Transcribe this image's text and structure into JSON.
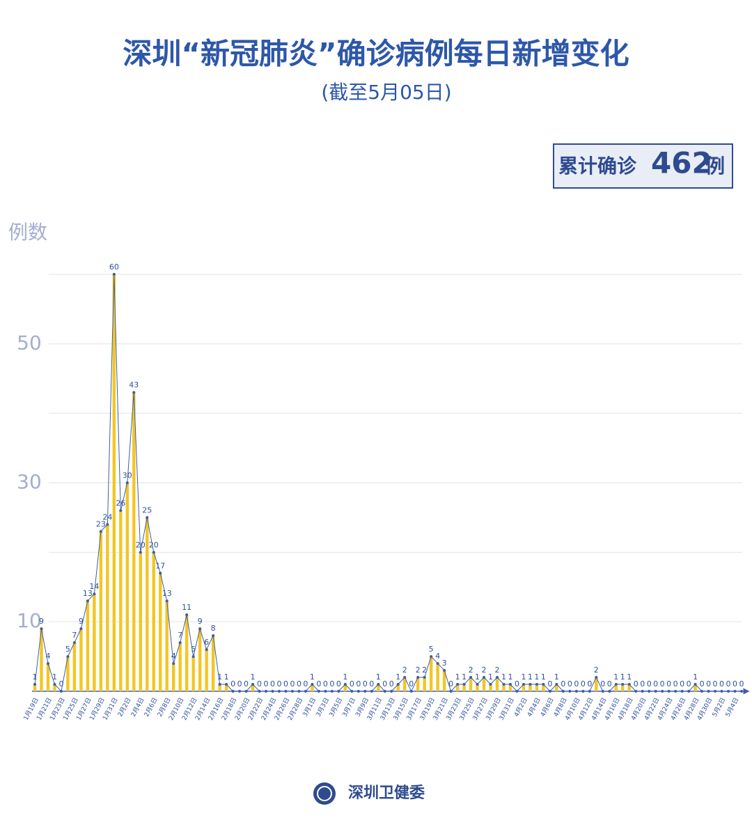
{
  "chart_data": {
    "type": "bar-line",
    "title": "深圳“新冠肺炎”确诊病例每日新增变化",
    "subtitle": "(截至5月05日)",
    "y_label": "例数",
    "categories": [
      "1月19日",
      null,
      "1月21日",
      null,
      "1月23日",
      null,
      "1月25日",
      null,
      "1月27日",
      null,
      "1月29日",
      null,
      "1月31日",
      null,
      "2月2日",
      null,
      "2月4日",
      null,
      "2月6日",
      null,
      "2月8日",
      null,
      "2月10日",
      null,
      "2月12日",
      null,
      "2月14日",
      null,
      "2月16日",
      null,
      "2月18日",
      null,
      "2月20日",
      null,
      "2月22日",
      null,
      "2月24日",
      null,
      "2月26日",
      null,
      "2月28日",
      null,
      "3月1日",
      null,
      "3月3日",
      null,
      "3月5日",
      null,
      "3月7日",
      null,
      "3月9日",
      null,
      "3月11日",
      null,
      "3月13日",
      null,
      "3月15日",
      null,
      "3月17日",
      null,
      "3月19日",
      null,
      "3月21日",
      null,
      "3月23日",
      null,
      "3月25日",
      null,
      "3月27日",
      null,
      "3月29日",
      null,
      "3月31日",
      null,
      "4月2日",
      null,
      "4月4日",
      null,
      "4月6日",
      null,
      "4月8日",
      null,
      "4月10日",
      null,
      "4月12日",
      null,
      "4月14日",
      null,
      "4月16日",
      null,
      "4月18日",
      null,
      "4月20日",
      null,
      "4月22日",
      null,
      "4月24日",
      null,
      "4月26日",
      null,
      "4月28日",
      null,
      "4月30日",
      null,
      "5月2日",
      null,
      "5月4日",
      null
    ],
    "values": [
      1,
      9,
      4,
      1,
      0,
      5,
      7,
      9,
      13,
      14,
      23,
      24,
      60,
      26,
      30,
      43,
      20,
      25,
      20,
      17,
      13,
      4,
      7,
      11,
      5,
      9,
      6,
      8,
      1,
      1,
      0,
      0,
      0,
      1,
      0,
      0,
      0,
      0,
      0,
      0,
      0,
      0,
      1,
      0,
      0,
      0,
      0,
      1,
      0,
      0,
      0,
      0,
      1,
      0,
      0,
      1,
      2,
      0,
      2,
      2,
      5,
      4,
      3,
      0,
      1,
      1,
      2,
      1,
      2,
      1,
      2,
      1,
      1,
      0,
      1,
      1,
      1,
      1,
      0,
      1,
      0,
      0,
      0,
      0,
      0,
      2,
      0,
      0,
      1,
      1,
      1,
      0,
      0,
      0,
      0,
      0,
      0,
      0,
      0,
      0,
      1,
      0,
      0,
      0,
      0,
      0,
      0,
      0
    ],
    "bar_color": "#f3c623",
    "line_color": "#3d5ea8",
    "ylim": [
      0,
      60
    ],
    "yticks": [
      10,
      30,
      50
    ],
    "ygrid": [
      10,
      20,
      30,
      40,
      50,
      60
    ]
  },
  "total": {
    "prefix": "累计确诊",
    "value": 462,
    "unit": "例"
  },
  "footer": {
    "source": "深圳卫健委"
  }
}
